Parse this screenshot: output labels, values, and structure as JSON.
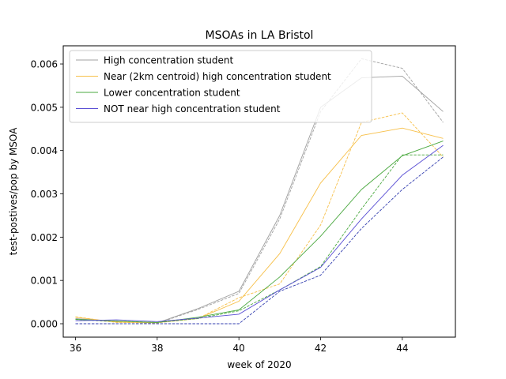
{
  "chart_data": {
    "type": "line",
    "title": "MSOAs in LA Bristol",
    "xlabel": "week of 2020",
    "ylabel": "test-postives/pop by MSOA",
    "xlim": [
      35.7,
      45.3
    ],
    "ylim": [
      -0.00031,
      0.00642
    ],
    "x_ticks": [
      36,
      38,
      40,
      42,
      44
    ],
    "y_ticks": [
      0.0,
      0.001,
      0.002,
      0.003,
      0.004,
      0.005,
      0.006
    ],
    "y_tick_labels": [
      "0.000",
      "0.001",
      "0.002",
      "0.003",
      "0.004",
      "0.005",
      "0.006"
    ],
    "legend_position": "upper-left",
    "x": [
      36,
      37,
      38,
      39,
      40,
      41,
      42,
      43,
      44,
      45
    ],
    "series": [
      {
        "name": "High concentration student",
        "color": "#a0a0a0",
        "style": "solid",
        "values": [
          0.00012,
          5e-05,
          2e-05,
          0.00035,
          0.00075,
          0.0025,
          0.005,
          0.00568,
          0.00572,
          0.0049
        ]
      },
      {
        "name": "",
        "color": "#a0a0a0",
        "style": "dashed",
        "values": [
          0.0001,
          4e-05,
          1e-05,
          0.00033,
          0.0007,
          0.00242,
          0.0049,
          0.00612,
          0.0059,
          0.00465
        ]
      },
      {
        "name": "Near (2km centroid) high concentration student",
        "color": "#f7c04a",
        "style": "solid",
        "values": [
          0.00015,
          4e-05,
          3e-05,
          0.00012,
          0.00052,
          0.00162,
          0.00325,
          0.00435,
          0.00452,
          0.00428
        ]
      },
      {
        "name": "",
        "color": "#f7c04a",
        "style": "dashed",
        "values": [
          0.00016,
          3e-05,
          2e-05,
          0.00012,
          0.0006,
          0.00092,
          0.00228,
          0.00465,
          0.00487,
          0.00385
        ]
      },
      {
        "name": "Lower concentration student",
        "color": "#4aa83f",
        "style": "solid",
        "values": [
          0.0001,
          6e-05,
          3e-05,
          0.00015,
          0.00032,
          0.00108,
          0.00202,
          0.0031,
          0.00388,
          0.00422
        ]
      },
      {
        "name": "",
        "color": "#4aa83f",
        "style": "dashed",
        "values": [
          0.0001,
          6e-05,
          3e-05,
          0.00012,
          0.0003,
          0.00078,
          0.00132,
          0.00265,
          0.0039,
          0.0039
        ]
      },
      {
        "name": "NOT near high concentration student",
        "color": "#5a4fd4",
        "style": "solid",
        "values": [
          7e-05,
          9e-05,
          5e-05,
          0.00013,
          0.00022,
          0.00078,
          0.0013,
          0.00242,
          0.00343,
          0.00412
        ]
      },
      {
        "name": "",
        "color": "#3540b0",
        "style": "dashed",
        "values": [
          0.0,
          0.0,
          0.0,
          0.0,
          0.0,
          0.00075,
          0.00112,
          0.0022,
          0.0031,
          0.00385
        ]
      }
    ]
  }
}
